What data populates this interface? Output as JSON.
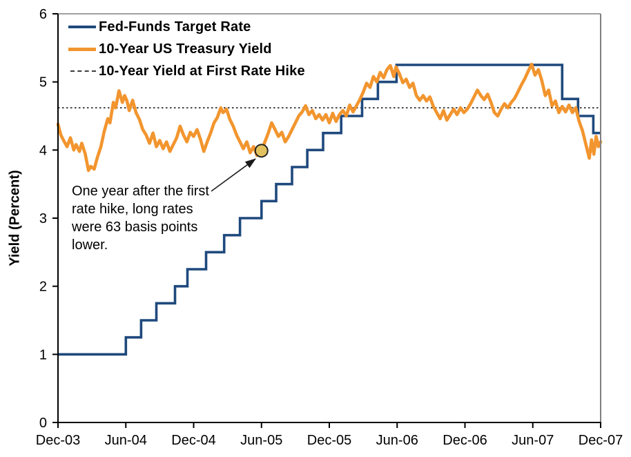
{
  "chart_data": {
    "type": "line",
    "title": "",
    "xlabel": "",
    "ylabel": "Yield (Percent)",
    "ylim": [
      0,
      6
    ],
    "y_ticks": [
      0,
      1,
      2,
      3,
      4,
      5,
      6
    ],
    "x_axis_unit": "months since Dec-03",
    "xlim_months": [
      0,
      48
    ],
    "x_tick_months": [
      0,
      6,
      12,
      18,
      24,
      30,
      36,
      42,
      48
    ],
    "x_tick_labels": [
      "Dec-03",
      "Jun-04",
      "Dec-04",
      "Jun-05",
      "Dec-05",
      "Jun-06",
      "Dec-06",
      "Jun-07",
      "Dec-07"
    ],
    "grid": false,
    "legend_position": "top-left-inside",
    "reference_line": {
      "label": "10-Year Yield at First Rate Hike",
      "value": 4.62,
      "style": "dotted",
      "color": "#1a1a1a"
    },
    "series": [
      {
        "name": "Fed-Funds Target Rate",
        "type": "step",
        "color": "#1F497D",
        "points": [
          [
            0,
            1.0
          ],
          [
            6.0,
            1.25
          ],
          [
            7.35,
            1.5
          ],
          [
            8.7,
            1.75
          ],
          [
            10.35,
            2.0
          ],
          [
            11.45,
            2.25
          ],
          [
            13.1,
            2.5
          ],
          [
            14.7,
            2.75
          ],
          [
            16.1,
            3.0
          ],
          [
            18.0,
            3.25
          ],
          [
            19.3,
            3.5
          ],
          [
            20.7,
            3.75
          ],
          [
            22.05,
            4.0
          ],
          [
            23.45,
            4.25
          ],
          [
            25.05,
            4.5
          ],
          [
            26.9,
            4.75
          ],
          [
            28.3,
            5.0
          ],
          [
            29.95,
            5.25
          ],
          [
            44.6,
            4.75
          ],
          [
            46.0,
            4.5
          ],
          [
            47.35,
            4.25
          ],
          [
            48,
            4.25
          ]
        ]
      },
      {
        "name": "10-Year US Treasury Yield",
        "type": "line",
        "color": "#F2952E",
        "points": [
          [
            0,
            4.38
          ],
          [
            0.25,
            4.22
          ],
          [
            0.5,
            4.14
          ],
          [
            0.8,
            4.05
          ],
          [
            1.1,
            4.18
          ],
          [
            1.4,
            4.0
          ],
          [
            1.6,
            4.08
          ],
          [
            1.9,
            3.98
          ],
          [
            2.1,
            4.1
          ],
          [
            2.4,
            3.95
          ],
          [
            2.7,
            3.7
          ],
          [
            2.9,
            3.76
          ],
          [
            3.2,
            3.72
          ],
          [
            3.5,
            3.9
          ],
          [
            3.8,
            4.05
          ],
          [
            4.1,
            4.28
          ],
          [
            4.4,
            4.46
          ],
          [
            4.6,
            4.4
          ],
          [
            4.9,
            4.7
          ],
          [
            5.1,
            4.62
          ],
          [
            5.4,
            4.87
          ],
          [
            5.7,
            4.7
          ],
          [
            5.9,
            4.8
          ],
          [
            6.1,
            4.72
          ],
          [
            6.3,
            4.58
          ],
          [
            6.6,
            4.73
          ],
          [
            6.9,
            4.55
          ],
          [
            7.2,
            4.45
          ],
          [
            7.5,
            4.3
          ],
          [
            7.8,
            4.22
          ],
          [
            8.1,
            4.1
          ],
          [
            8.4,
            4.25
          ],
          [
            8.7,
            4.05
          ],
          [
            9.0,
            4.14
          ],
          [
            9.3,
            4.02
          ],
          [
            9.6,
            4.12
          ],
          [
            9.9,
            3.98
          ],
          [
            10.2,
            4.08
          ],
          [
            10.5,
            4.18
          ],
          [
            10.8,
            4.35
          ],
          [
            11.1,
            4.22
          ],
          [
            11.4,
            4.12
          ],
          [
            11.7,
            4.26
          ],
          [
            12.0,
            4.2
          ],
          [
            12.3,
            4.3
          ],
          [
            12.6,
            4.16
          ],
          [
            12.9,
            3.98
          ],
          [
            13.2,
            4.12
          ],
          [
            13.5,
            4.25
          ],
          [
            13.8,
            4.4
          ],
          [
            14.1,
            4.48
          ],
          [
            14.4,
            4.62
          ],
          [
            14.6,
            4.55
          ],
          [
            14.9,
            4.6
          ],
          [
            15.2,
            4.45
          ],
          [
            15.5,
            4.35
          ],
          [
            15.8,
            4.22
          ],
          [
            16.1,
            4.12
          ],
          [
            16.4,
            4.02
          ],
          [
            16.7,
            4.12
          ],
          [
            17.0,
            3.96
          ],
          [
            17.3,
            4.05
          ],
          [
            17.6,
            3.92
          ],
          [
            18.0,
            3.99
          ],
          [
            18.3,
            4.12
          ],
          [
            18.6,
            4.25
          ],
          [
            18.9,
            4.4
          ],
          [
            19.2,
            4.3
          ],
          [
            19.5,
            4.2
          ],
          [
            19.8,
            4.26
          ],
          [
            20.1,
            4.12
          ],
          [
            20.4,
            4.2
          ],
          [
            20.7,
            4.3
          ],
          [
            21.0,
            4.4
          ],
          [
            21.3,
            4.5
          ],
          [
            21.6,
            4.56
          ],
          [
            21.9,
            4.65
          ],
          [
            22.2,
            4.52
          ],
          [
            22.5,
            4.58
          ],
          [
            22.8,
            4.46
          ],
          [
            23.1,
            4.52
          ],
          [
            23.4,
            4.44
          ],
          [
            23.7,
            4.52
          ],
          [
            24.0,
            4.4
          ],
          [
            24.3,
            4.54
          ],
          [
            24.6,
            4.42
          ],
          [
            24.9,
            4.52
          ],
          [
            25.2,
            4.58
          ],
          [
            25.5,
            4.5
          ],
          [
            25.8,
            4.66
          ],
          [
            26.1,
            4.56
          ],
          [
            26.4,
            4.65
          ],
          [
            26.7,
            4.74
          ],
          [
            27.0,
            4.85
          ],
          [
            27.3,
            4.98
          ],
          [
            27.6,
            4.92
          ],
          [
            27.9,
            5.08
          ],
          [
            28.2,
            5.0
          ],
          [
            28.5,
            5.14
          ],
          [
            28.8,
            5.06
          ],
          [
            29.1,
            5.18
          ],
          [
            29.4,
            5.24
          ],
          [
            29.7,
            5.08
          ],
          [
            29.9,
            5.22
          ],
          [
            30.2,
            5.12
          ],
          [
            30.5,
            4.99
          ],
          [
            30.8,
            5.04
          ],
          [
            31.1,
            4.92
          ],
          [
            31.4,
            4.98
          ],
          [
            31.7,
            4.8
          ],
          [
            32.0,
            4.73
          ],
          [
            32.3,
            4.8
          ],
          [
            32.6,
            4.72
          ],
          [
            32.9,
            4.78
          ],
          [
            33.2,
            4.64
          ],
          [
            33.5,
            4.55
          ],
          [
            33.8,
            4.46
          ],
          [
            34.1,
            4.58
          ],
          [
            34.4,
            4.44
          ],
          [
            34.7,
            4.52
          ],
          [
            35.0,
            4.6
          ],
          [
            35.3,
            4.52
          ],
          [
            35.6,
            4.62
          ],
          [
            35.9,
            4.55
          ],
          [
            36.2,
            4.6
          ],
          [
            36.5,
            4.68
          ],
          [
            36.8,
            4.78
          ],
          [
            37.1,
            4.88
          ],
          [
            37.4,
            4.8
          ],
          [
            37.7,
            4.74
          ],
          [
            38.0,
            4.82
          ],
          [
            38.3,
            4.7
          ],
          [
            38.6,
            4.55
          ],
          [
            38.9,
            4.5
          ],
          [
            39.2,
            4.6
          ],
          [
            39.5,
            4.68
          ],
          [
            39.8,
            4.62
          ],
          [
            40.1,
            4.7
          ],
          [
            40.4,
            4.76
          ],
          [
            40.7,
            4.86
          ],
          [
            41.0,
            4.96
          ],
          [
            41.3,
            5.05
          ],
          [
            41.6,
            5.16
          ],
          [
            41.9,
            5.26
          ],
          [
            42.2,
            5.1
          ],
          [
            42.5,
            5.18
          ],
          [
            42.8,
            5.02
          ],
          [
            43.1,
            4.8
          ],
          [
            43.4,
            4.88
          ],
          [
            43.7,
            4.65
          ],
          [
            44.0,
            4.72
          ],
          [
            44.3,
            4.55
          ],
          [
            44.6,
            4.64
          ],
          [
            44.9,
            4.56
          ],
          [
            45.2,
            4.66
          ],
          [
            45.5,
            4.55
          ],
          [
            45.8,
            4.62
          ],
          [
            46.1,
            4.42
          ],
          [
            46.4,
            4.28
          ],
          [
            46.7,
            4.08
          ],
          [
            47.0,
            3.88
          ],
          [
            47.2,
            4.15
          ],
          [
            47.4,
            3.94
          ],
          [
            47.6,
            4.2
          ],
          [
            47.8,
            4.05
          ],
          [
            48.0,
            4.12
          ]
        ]
      }
    ],
    "marker": {
      "x_months": 18,
      "value": 3.99,
      "fill": "#E2C25F",
      "stroke": "#222222",
      "shape": "circle"
    },
    "annotation": {
      "text": "One year after the first rate hike, long rates were 63 basis points lower."
    },
    "colors": {
      "axis": "#000000",
      "border": "#808080",
      "background": "#ffffff"
    }
  }
}
